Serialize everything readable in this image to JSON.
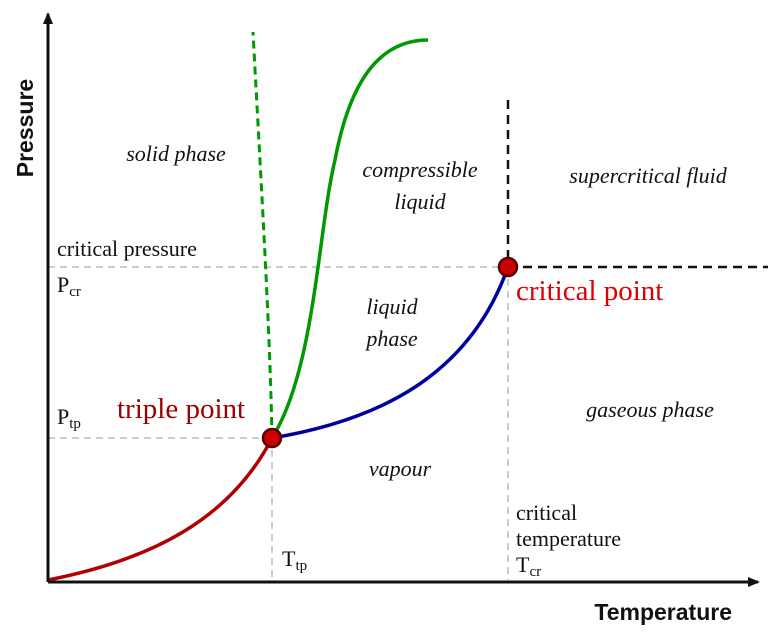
{
  "axes": {
    "x_title": "Temperature",
    "y_title": "Pressure"
  },
  "regions": {
    "solid": "solid phase",
    "compressible_1": "compressible",
    "compressible_2": "liquid",
    "supercritical": "supercritical fluid",
    "liquid_1": "liquid",
    "liquid_2": "phase",
    "gaseous": "gaseous phase",
    "vapour": "vapour"
  },
  "labels": {
    "critical_pressure": "critical pressure",
    "p_cr_main": "P",
    "p_cr_sub": "cr",
    "p_tp_main": "P",
    "p_tp_sub": "tp",
    "t_tp_main": "T",
    "t_tp_sub": "tp",
    "critical_temp_1": "critical",
    "critical_temp_2": "temperature",
    "t_cr_main": "T",
    "t_cr_sub": "cr"
  },
  "points": {
    "triple": "triple point",
    "critical": "critical point"
  },
  "colors": {
    "sublimation_curve": "#b00000",
    "vaporization_curve": "#0000a0",
    "melting_curve": "#009900",
    "triple_point_label": "#a00000",
    "critical_point_label": "#dd0000",
    "point_fill": "#cc0000",
    "point_stroke": "#550000"
  }
}
